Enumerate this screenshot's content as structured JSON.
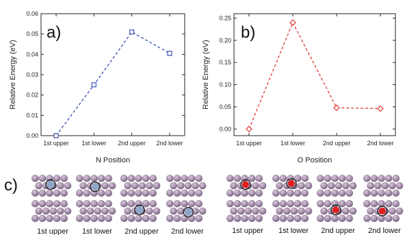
{
  "colors": {
    "n_series": "#3a4fb0",
    "o_series": "#e03a3a",
    "atom": "#a58eab",
    "atom_shadow": "#6f5f78",
    "o_atom": "#e02020",
    "n_atom": "#8fa6c8",
    "ring": "#111111"
  },
  "chart_data": [
    {
      "type": "line",
      "panel_label": "a)",
      "categories": [
        "1st upper",
        "1st lower",
        "2nd upper",
        "2nd lower"
      ],
      "values": [
        0.0,
        0.025,
        0.051,
        0.0405
      ],
      "marker": "square",
      "xlabel": "N Position",
      "ylabel": "Relative Energy (eV)",
      "ylim": [
        0,
        0.06
      ],
      "yticks": [
        "0.00",
        "0.01",
        "0.02",
        "0.03",
        "0.04",
        "0.05",
        "0.06"
      ],
      "line_style": "dashed",
      "color": "#3a4fb0"
    },
    {
      "type": "line",
      "panel_label": "b)",
      "categories": [
        "1st upper",
        "1st lower",
        "2nd upper",
        "2nd lower"
      ],
      "values": [
        0.0,
        0.24,
        0.048,
        0.046
      ],
      "marker": "diamond",
      "xlabel": "O Position",
      "ylabel": "Relative Energy (eV)",
      "ylim": [
        -0.015,
        0.26
      ],
      "yticks": [
        "0.00",
        "0.05",
        "0.10",
        "0.15",
        "0.20",
        "0.25"
      ],
      "ytick_values": [
        0,
        0.05,
        0.1,
        0.15,
        0.2,
        0.25
      ],
      "line_style": "dashed",
      "color": "#e03a3a"
    }
  ],
  "structures": {
    "panel_label": "c)",
    "n_labels": [
      "1st upper",
      "1st lower",
      "2nd upper",
      "2nd lower"
    ],
    "o_labels": [
      "1st upper",
      "1st lower",
      "2nd upper",
      "2nd lower"
    ]
  }
}
